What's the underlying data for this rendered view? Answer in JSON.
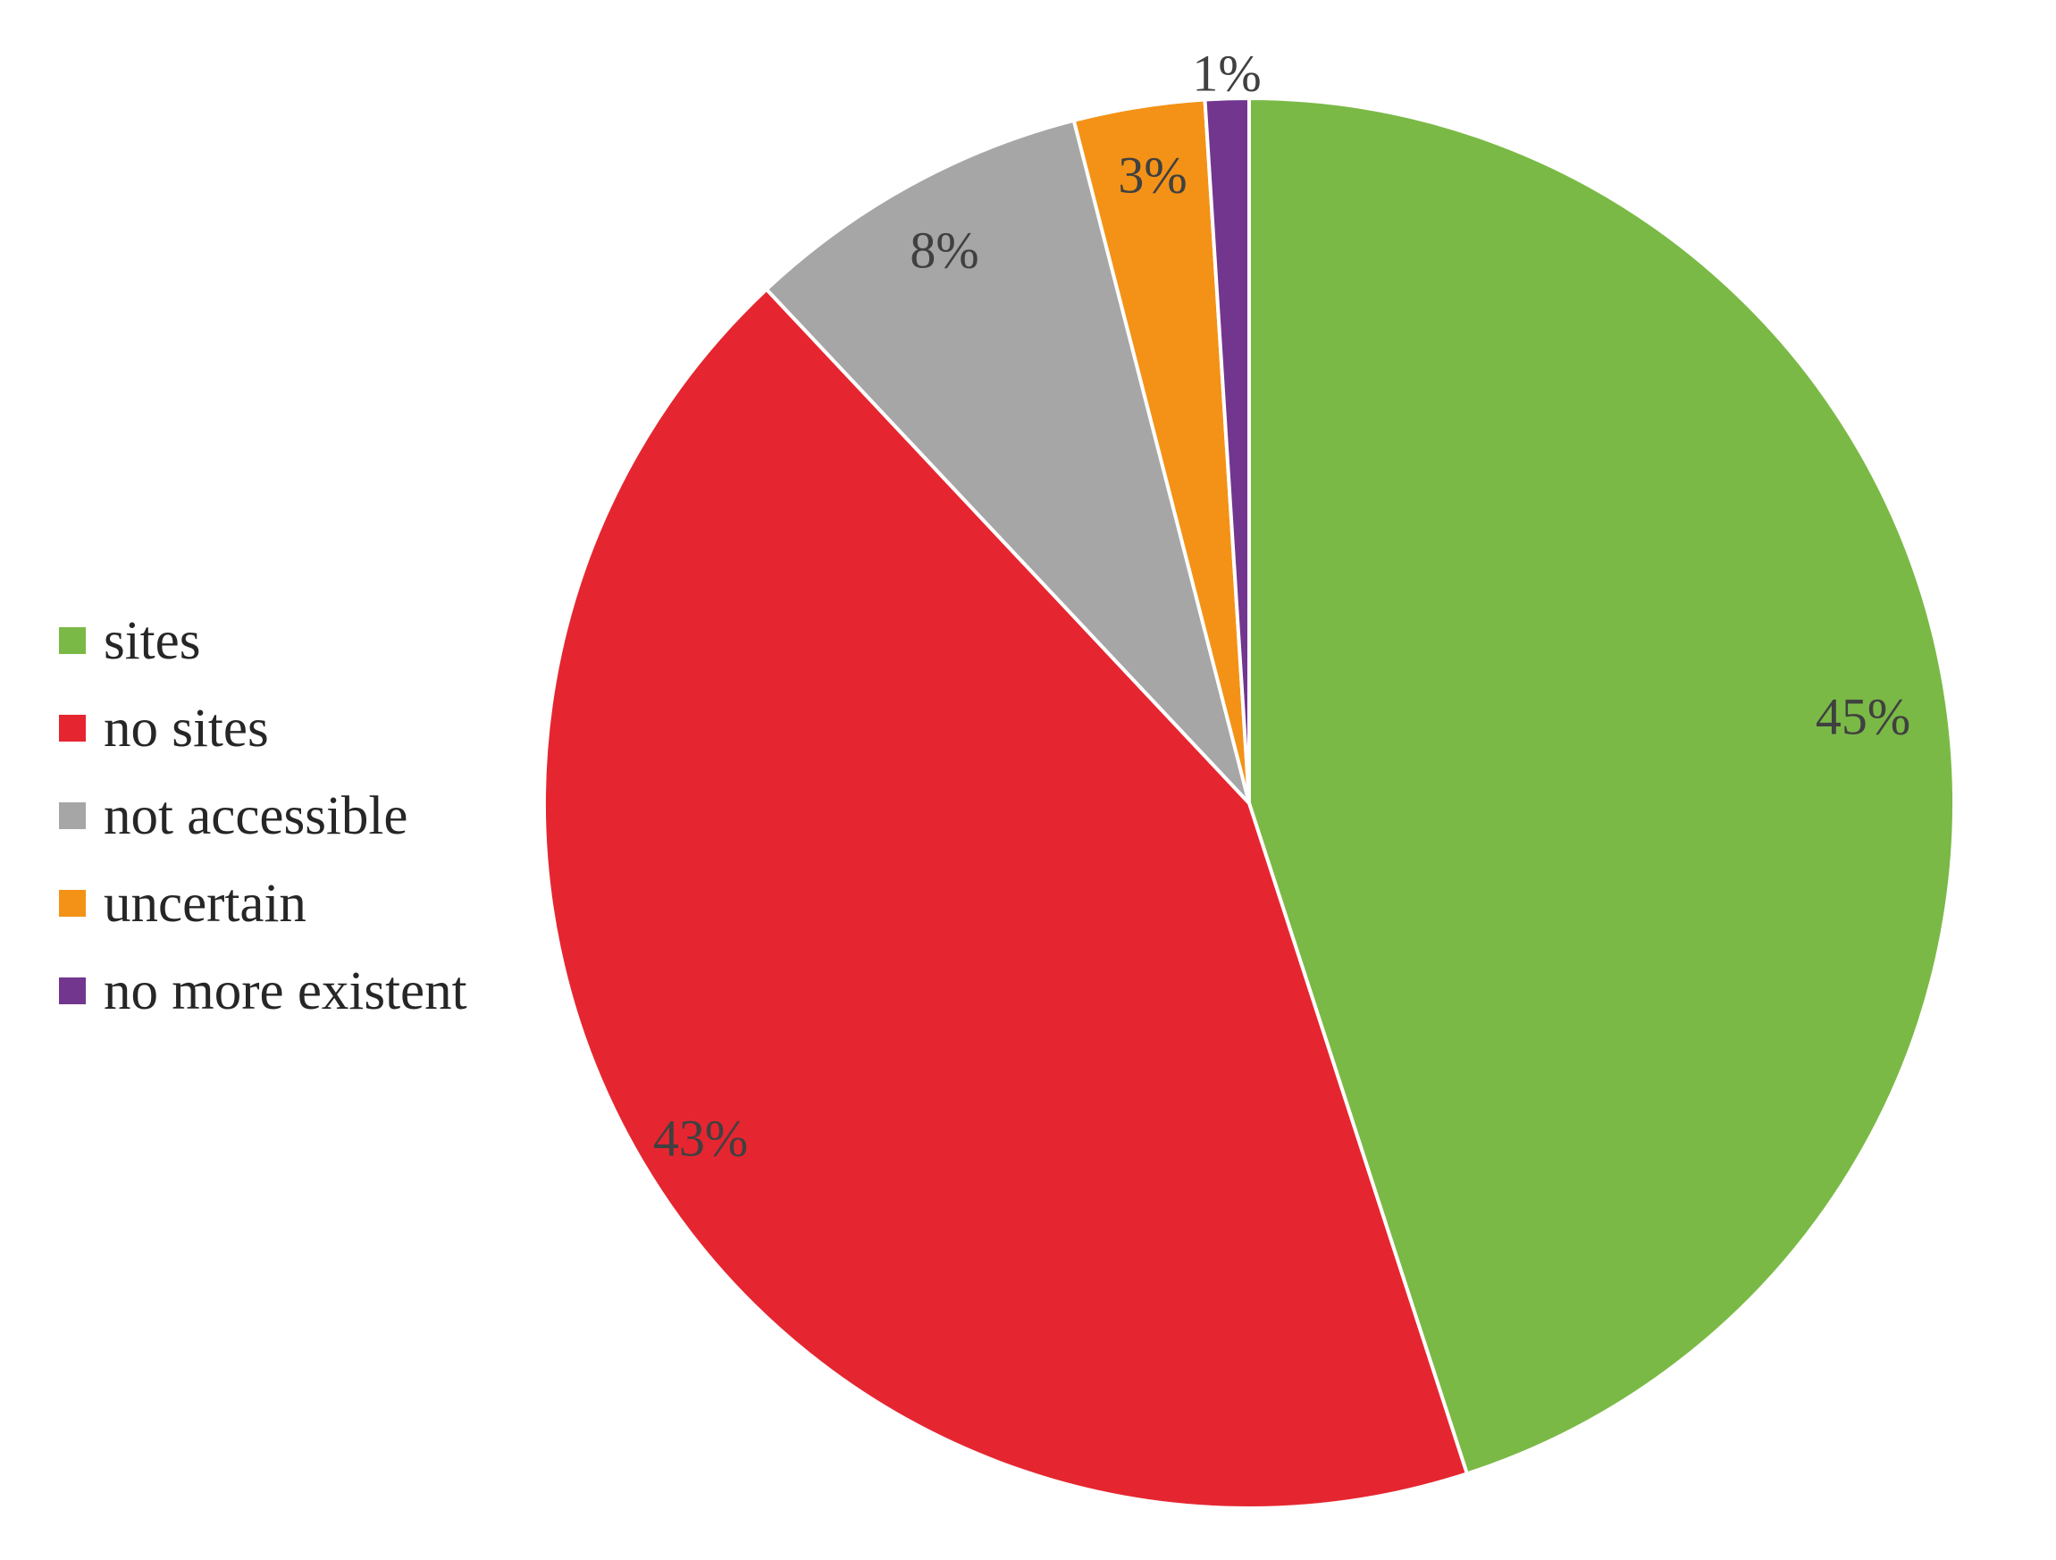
{
  "chart_data": {
    "type": "pie",
    "title": "",
    "start_angle_deg": 0,
    "direction": "clockwise",
    "legend_position": "left",
    "slices": [
      {
        "name": "sites",
        "value": 45,
        "label": "45%",
        "color": "#7AB946"
      },
      {
        "name": "no sites",
        "value": 43,
        "label": "43%",
        "color": "#E52630"
      },
      {
        "name": "not accessible",
        "value": 8,
        "label": "8%",
        "color": "#A6A6A6"
      },
      {
        "name": "uncertain",
        "value": 3,
        "label": "3%",
        "color": "#F39217"
      },
      {
        "name": "no more existent",
        "value": 1,
        "label": "1%",
        "color": "#72368F"
      }
    ]
  }
}
